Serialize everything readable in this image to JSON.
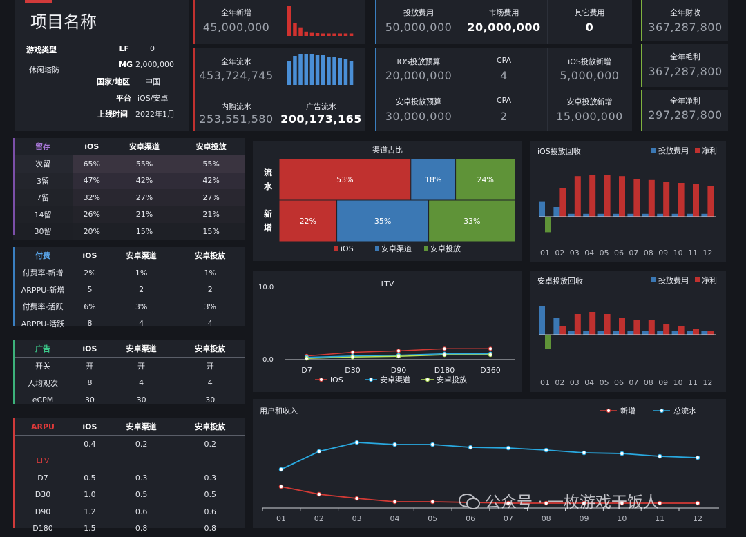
{
  "header": {
    "project_title": "项目名称",
    "info_left": [
      {
        "label": "游戏类型",
        "value": "休闲塔防"
      }
    ],
    "info_right": [
      {
        "label": "LF",
        "value": "0"
      },
      {
        "label": "MG",
        "value": "2,000,000"
      },
      {
        "label": "国家/地区",
        "value": "中国"
      },
      {
        "label": "平台",
        "value": "iOS/安卓"
      },
      {
        "label": "上线时间",
        "value": "2022年1月"
      }
    ]
  },
  "kpis": {
    "new_users": {
      "label": "全年新增",
      "value": "45,000,000"
    },
    "total_flow": {
      "label": "全年流水",
      "value": "453,724,745"
    },
    "iap_flow": {
      "label": "内购流水",
      "value": "253,551,580"
    },
    "ad_flow": {
      "label": "广告流水",
      "value": "200,173,165"
    },
    "ua_cost": {
      "label": "投放费用",
      "value": "50,000,000"
    },
    "market_cost": {
      "label": "市场费用",
      "value": "20,000,000"
    },
    "other_cost": {
      "label": "其它费用",
      "value": "0"
    },
    "ios_budget": {
      "label": "IOS投放预算",
      "value": "20,000,000"
    },
    "ios_cpa": {
      "label": "CPA",
      "value": "4"
    },
    "ios_new": {
      "label": "iOS投放新增",
      "value": "5,000,000"
    },
    "android_budget": {
      "label": "安卓投放预算",
      "value": "30,000,000"
    },
    "android_cpa": {
      "label": "CPA",
      "value": "2"
    },
    "android_new": {
      "label": "安卓投放新增",
      "value": "15,000,000"
    },
    "revenue": {
      "label": "全年财收",
      "value": "367,287,800"
    },
    "gross_profit": {
      "label": "全年毛利",
      "value": "367,287,800"
    },
    "net_profit": {
      "label": "全年净利",
      "value": "297,287,800"
    }
  },
  "tables": {
    "retention": {
      "header": [
        "留存",
        "iOS",
        "安卓渠道",
        "安卓投放"
      ],
      "accent": "#7b4fa8",
      "rows": [
        [
          "次留",
          "65%",
          "55%",
          "55%"
        ],
        [
          "3留",
          "47%",
          "42%",
          "42%"
        ],
        [
          "7留",
          "32%",
          "27%",
          "27%"
        ],
        [
          "14留",
          "26%",
          "21%",
          "21%"
        ],
        [
          "30留",
          "20%",
          "15%",
          "15%"
        ]
      ]
    },
    "payment": {
      "header": [
        "付费",
        "iOS",
        "安卓渠道",
        "安卓投放"
      ],
      "accent": "#3a7fc0",
      "rows": [
        [
          "付费率-新增",
          "2%",
          "1%",
          "1%"
        ],
        [
          "ARPPU-新增",
          "5",
          "2",
          "2"
        ],
        [
          "付费率-活跃",
          "6%",
          "3%",
          "3%"
        ],
        [
          "ARPPU-活跃",
          "8",
          "4",
          "4"
        ]
      ]
    },
    "ads": {
      "header": [
        "广告",
        "iOS",
        "安卓渠道",
        "安卓投放"
      ],
      "accent": "#3cb17a",
      "rows": [
        [
          "开关",
          "开",
          "开",
          "开"
        ],
        [
          "人均观次",
          "8",
          "4",
          "4"
        ],
        [
          "eCPM",
          "30",
          "30",
          "30"
        ]
      ]
    },
    "arpu": {
      "header": [
        "ARPU",
        "iOS",
        "安卓渠道",
        "安卓投放"
      ],
      "accent": "#d03a3a",
      "rows": [
        [
          "",
          "0.4",
          "0.2",
          "0.2"
        ],
        [
          "LTV",
          "",
          "",
          ""
        ],
        [
          "D7",
          "0.5",
          "0.3",
          "0.3"
        ],
        [
          "D30",
          "1.0",
          "0.5",
          "0.5"
        ],
        [
          "D90",
          "1.2",
          "0.6",
          "0.6"
        ],
        [
          "D180",
          "1.5",
          "0.8",
          "0.8"
        ]
      ]
    }
  },
  "watermark": "公众号 · 一枚游戏干饭人",
  "colors": {
    "ios": "#c0312f",
    "android_channel": "#3b78b4",
    "android_ua": "#5f9338",
    "line_red": "#d23a35",
    "line_blue": "#29a9e0",
    "bar_blue": "#4a8fd6"
  },
  "chart_data": [
    {
      "id": "new_users_spark",
      "type": "bar",
      "values": [
        100,
        42,
        28,
        14,
        10,
        9,
        8,
        8,
        8,
        8,
        8,
        8
      ],
      "ylim": [
        0,
        100
      ]
    },
    {
      "id": "total_flow_spark",
      "type": "bar",
      "values": [
        68,
        84,
        90,
        90,
        90,
        86,
        86,
        82,
        80,
        78,
        74,
        70
      ],
      "ylim": [
        0,
        100
      ]
    },
    {
      "id": "channel_share",
      "type": "bar",
      "title": "渠道占比",
      "categories": [
        "流水",
        "新增"
      ],
      "series": [
        {
          "name": "iOS",
          "values": [
            53,
            22
          ]
        },
        {
          "name": "安卓渠道",
          "values": [
            18,
            35
          ]
        },
        {
          "name": "安卓投放",
          "values": [
            24,
            33
          ]
        }
      ]
    },
    {
      "id": "ios_roi",
      "type": "bar",
      "title": "iOS投放回收",
      "categories": [
        "01",
        "02",
        "03",
        "04",
        "05",
        "06",
        "07",
        "08",
        "09",
        "10",
        "11",
        "12"
      ],
      "series": [
        {
          "name": "投放费用",
          "values": [
            1.6,
            1.0,
            0.3,
            0.3,
            0.3,
            0.3,
            0.3,
            0.3,
            0.3,
            0.3,
            0.3,
            0.3
          ]
        },
        {
          "name": "净利",
          "values": [
            -1.6,
            3.0,
            4.2,
            4.3,
            4.3,
            4.2,
            3.9,
            3.8,
            3.6,
            3.5,
            3.4,
            3.2
          ]
        }
      ]
    },
    {
      "id": "ltv",
      "type": "line",
      "title": "LTV",
      "categories": [
        "D7",
        "D30",
        "D90",
        "D180",
        "D360"
      ],
      "ylim": [
        0.0,
        10.0
      ],
      "yticks": [
        "10.0",
        "0.0"
      ],
      "series": [
        {
          "name": "iOS",
          "values": [
            0.5,
            1.0,
            1.2,
            1.5,
            1.5
          ]
        },
        {
          "name": "安卓渠道",
          "values": [
            0.3,
            0.5,
            0.6,
            0.8,
            0.8
          ]
        },
        {
          "name": "安卓投放",
          "values": [
            0.3,
            0.5,
            0.6,
            0.8,
            0.8
          ]
        }
      ]
    },
    {
      "id": "android_roi",
      "type": "bar",
      "title": "安卓投放回收",
      "categories": [
        "01",
        "02",
        "03",
        "04",
        "05",
        "06",
        "07",
        "08",
        "09",
        "10",
        "11",
        "12"
      ],
      "series": [
        {
          "name": "投放费用",
          "values": [
            1.4,
            0.8,
            0.2,
            0.2,
            0.2,
            0.2,
            0.2,
            0.2,
            0.2,
            0.2,
            0.2,
            0.2
          ]
        },
        {
          "name": "净利",
          "values": [
            -0.7,
            0.4,
            1.0,
            1.1,
            1.0,
            0.8,
            0.7,
            0.7,
            0.5,
            0.4,
            0.3,
            0.2
          ]
        }
      ]
    },
    {
      "id": "users_revenue",
      "type": "line",
      "title": "用户和收入",
      "categories": [
        "01",
        "02",
        "03",
        "04",
        "05",
        "06",
        "07",
        "08",
        "09",
        "10",
        "11",
        "12"
      ],
      "series": [
        {
          "name": "新增",
          "values": [
            28,
            17,
            11,
            6,
            6,
            5,
            4,
            4,
            4,
            4,
            4,
            4
          ]
        },
        {
          "name": "总流水",
          "values": [
            53,
            79,
            92,
            89,
            89,
            85,
            84,
            81,
            77,
            76,
            72,
            70
          ]
        }
      ]
    }
  ]
}
